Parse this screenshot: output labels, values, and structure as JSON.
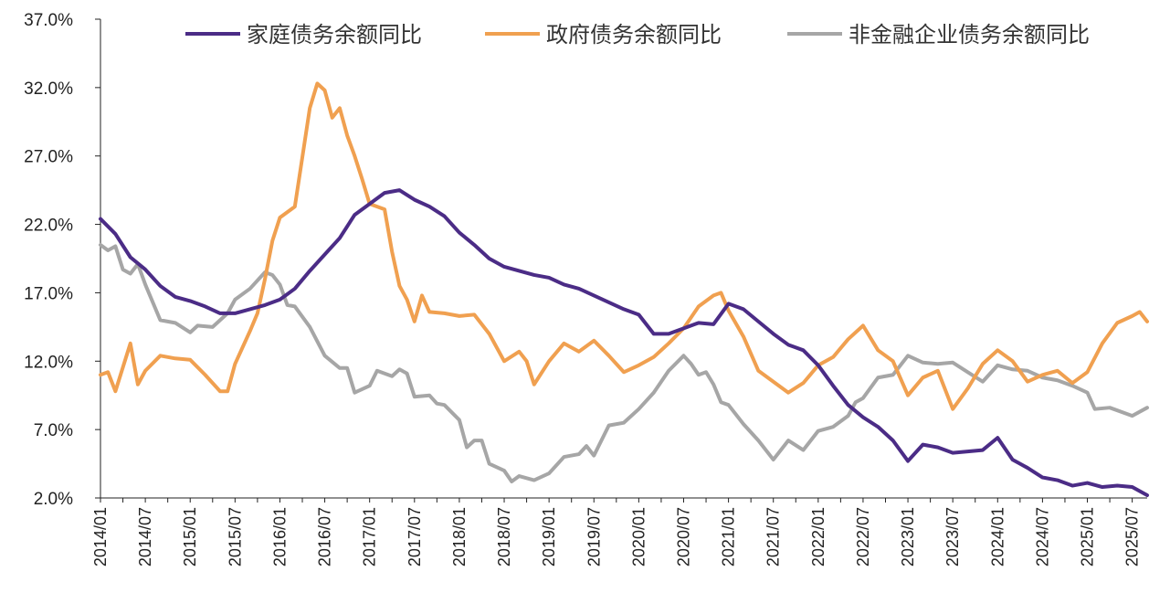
{
  "chart_data": {
    "type": "line",
    "title": "",
    "xlabel": "",
    "ylabel": "",
    "ylim": [
      2.0,
      37.0
    ],
    "y_ticks": [
      "2.0%",
      "7.0%",
      "12.0%",
      "17.0%",
      "22.0%",
      "27.0%",
      "32.0%",
      "37.0%"
    ],
    "x_tick_labels": [
      "2014/01",
      "2014/07",
      "2015/01",
      "2015/07",
      "2016/01",
      "2016/07",
      "2017/01",
      "2017/07",
      "2018/01",
      "2018/07",
      "2019/01",
      "2019/07",
      "2020/01",
      "2020/07",
      "2021/01",
      "2021/07",
      "2022/01",
      "2022/07",
      "2023/01",
      "2023/07",
      "2024/01",
      "2024/07",
      "2025/01",
      "2025/07"
    ],
    "legend_position": "top",
    "grid": false,
    "series": [
      {
        "name": "家庭债务余额同比",
        "color": "#4B2C86",
        "keypoints": [
          [
            "2014/01",
            22.4
          ],
          [
            "2014/03",
            21.3
          ],
          [
            "2014/05",
            19.6
          ],
          [
            "2014/07",
            18.7
          ],
          [
            "2014/09",
            17.5
          ],
          [
            "2014/11",
            16.7
          ],
          [
            "2015/01",
            16.4
          ],
          [
            "2015/03",
            16.0
          ],
          [
            "2015/05",
            15.5
          ],
          [
            "2015/07",
            15.5
          ],
          [
            "2015/09",
            15.8
          ],
          [
            "2015/11",
            16.1
          ],
          [
            "2016/01",
            16.5
          ],
          [
            "2016/03",
            17.3
          ],
          [
            "2016/05",
            18.6
          ],
          [
            "2016/07",
            19.8
          ],
          [
            "2016/09",
            21.0
          ],
          [
            "2016/11",
            22.7
          ],
          [
            "2017/01",
            23.5
          ],
          [
            "2017/03",
            24.3
          ],
          [
            "2017/05",
            24.5
          ],
          [
            "2017/07",
            23.8
          ],
          [
            "2017/09",
            23.3
          ],
          [
            "2017/11",
            22.6
          ],
          [
            "2018/01",
            21.4
          ],
          [
            "2018/03",
            20.5
          ],
          [
            "2018/05",
            19.5
          ],
          [
            "2018/07",
            18.9
          ],
          [
            "2018/09",
            18.6
          ],
          [
            "2018/11",
            18.3
          ],
          [
            "2019/01",
            18.1
          ],
          [
            "2019/03",
            17.6
          ],
          [
            "2019/05",
            17.3
          ],
          [
            "2019/07",
            16.8
          ],
          [
            "2019/09",
            16.3
          ],
          [
            "2019/11",
            15.8
          ],
          [
            "2020/01",
            15.4
          ],
          [
            "2020/03",
            14.0
          ],
          [
            "2020/05",
            14.0
          ],
          [
            "2020/07",
            14.4
          ],
          [
            "2020/09",
            14.8
          ],
          [
            "2020/11",
            14.7
          ],
          [
            "2021/01",
            16.2
          ],
          [
            "2021/03",
            15.8
          ],
          [
            "2021/05",
            14.9
          ],
          [
            "2021/07",
            14.0
          ],
          [
            "2021/09",
            13.2
          ],
          [
            "2021/11",
            12.8
          ],
          [
            "2022/01",
            11.7
          ],
          [
            "2022/03",
            10.2
          ],
          [
            "2022/05",
            8.8
          ],
          [
            "2022/07",
            7.9
          ],
          [
            "2022/09",
            7.2
          ],
          [
            "2022/11",
            6.2
          ],
          [
            "2023/01",
            4.7
          ],
          [
            "2023/03",
            5.9
          ],
          [
            "2023/05",
            5.7
          ],
          [
            "2023/07",
            5.3
          ],
          [
            "2023/09",
            5.4
          ],
          [
            "2023/11",
            5.5
          ],
          [
            "2024/01",
            6.4
          ],
          [
            "2024/03",
            4.8
          ],
          [
            "2024/05",
            4.2
          ],
          [
            "2024/07",
            3.5
          ],
          [
            "2024/09",
            3.3
          ],
          [
            "2024/11",
            2.9
          ],
          [
            "2025/01",
            3.1
          ],
          [
            "2025/03",
            2.8
          ],
          [
            "2025/05",
            2.9
          ],
          [
            "2025/07",
            2.8
          ],
          [
            "2025/09",
            2.2
          ]
        ]
      },
      {
        "name": "政府债务余额同比",
        "color": "#F0A050",
        "keypoints": [
          [
            "2014/01",
            11.0
          ],
          [
            "2014/02",
            11.2
          ],
          [
            "2014/03",
            9.8
          ],
          [
            "2014/05",
            13.3
          ],
          [
            "2014/06",
            10.3
          ],
          [
            "2014/07",
            11.3
          ],
          [
            "2014/09",
            12.4
          ],
          [
            "2014/11",
            12.2
          ],
          [
            "2015/01",
            12.1
          ],
          [
            "2015/03",
            11.0
          ],
          [
            "2015/05",
            9.8
          ],
          [
            "2015/06",
            9.8
          ],
          [
            "2015/07",
            11.8
          ],
          [
            "2015/09",
            14.2
          ],
          [
            "2015/10",
            15.5
          ],
          [
            "2015/11",
            18.0
          ],
          [
            "2015/12",
            20.8
          ],
          [
            "2016/01",
            22.5
          ],
          [
            "2016/03",
            23.3
          ],
          [
            "2016/05",
            30.5
          ],
          [
            "2016/06",
            32.3
          ],
          [
            "2016/07",
            31.8
          ],
          [
            "2016/08",
            29.8
          ],
          [
            "2016/09",
            30.5
          ],
          [
            "2016/10",
            28.5
          ],
          [
            "2016/11",
            27.0
          ],
          [
            "2016/12",
            25.3
          ],
          [
            "2017/01",
            23.5
          ],
          [
            "2017/03",
            23.1
          ],
          [
            "2017/04",
            20.0
          ],
          [
            "2017/05",
            17.5
          ],
          [
            "2017/06",
            16.5
          ],
          [
            "2017/07",
            14.9
          ],
          [
            "2017/08",
            16.8
          ],
          [
            "2017/09",
            15.6
          ],
          [
            "2017/11",
            15.5
          ],
          [
            "2018/01",
            15.3
          ],
          [
            "2018/03",
            15.4
          ],
          [
            "2018/05",
            14.0
          ],
          [
            "2018/07",
            12.0
          ],
          [
            "2018/09",
            12.7
          ],
          [
            "2018/10",
            12.0
          ],
          [
            "2018/11",
            10.3
          ],
          [
            "2019/01",
            12.0
          ],
          [
            "2019/03",
            13.3
          ],
          [
            "2019/05",
            12.7
          ],
          [
            "2019/07",
            13.5
          ],
          [
            "2019/09",
            12.4
          ],
          [
            "2019/11",
            11.2
          ],
          [
            "2020/01",
            11.7
          ],
          [
            "2020/03",
            12.3
          ],
          [
            "2020/05",
            13.3
          ],
          [
            "2020/07",
            14.4
          ],
          [
            "2020/09",
            16.0
          ],
          [
            "2020/11",
            16.8
          ],
          [
            "2020/12",
            17.0
          ],
          [
            "2021/01",
            15.7
          ],
          [
            "2021/03",
            13.8
          ],
          [
            "2021/05",
            11.3
          ],
          [
            "2021/07",
            10.5
          ],
          [
            "2021/09",
            9.7
          ],
          [
            "2021/11",
            10.4
          ],
          [
            "2022/01",
            11.7
          ],
          [
            "2022/03",
            12.3
          ],
          [
            "2022/05",
            13.6
          ],
          [
            "2022/07",
            14.6
          ],
          [
            "2022/09",
            12.8
          ],
          [
            "2022/11",
            12.0
          ],
          [
            "2023/01",
            9.5
          ],
          [
            "2023/03",
            10.8
          ],
          [
            "2023/05",
            11.3
          ],
          [
            "2023/07",
            8.5
          ],
          [
            "2023/09",
            10.0
          ],
          [
            "2023/11",
            11.8
          ],
          [
            "2024/01",
            12.8
          ],
          [
            "2024/03",
            12.0
          ],
          [
            "2024/05",
            10.5
          ],
          [
            "2024/07",
            11.0
          ],
          [
            "2024/09",
            11.3
          ],
          [
            "2024/11",
            10.4
          ],
          [
            "2025/01",
            11.2
          ],
          [
            "2025/03",
            13.3
          ],
          [
            "2025/05",
            14.8
          ],
          [
            "2025/07",
            15.3
          ],
          [
            "2025/08",
            15.6
          ],
          [
            "2025/09",
            14.9
          ]
        ]
      },
      {
        "name": "非金融企业债务余额同比",
        "color": "#A6A6A6",
        "keypoints": [
          [
            "2014/01",
            20.5
          ],
          [
            "2014/02",
            20.1
          ],
          [
            "2014/03",
            20.4
          ],
          [
            "2014/04",
            18.7
          ],
          [
            "2014/05",
            18.4
          ],
          [
            "2014/06",
            19.1
          ],
          [
            "2014/07",
            17.6
          ],
          [
            "2014/09",
            15.0
          ],
          [
            "2014/11",
            14.8
          ],
          [
            "2015/01",
            14.1
          ],
          [
            "2015/02",
            14.6
          ],
          [
            "2015/04",
            14.5
          ],
          [
            "2015/06",
            15.5
          ],
          [
            "2015/07",
            16.5
          ],
          [
            "2015/09",
            17.3
          ],
          [
            "2015/11",
            18.5
          ],
          [
            "2015/12",
            18.3
          ],
          [
            "2016/01",
            17.6
          ],
          [
            "2016/02",
            16.1
          ],
          [
            "2016/03",
            16.0
          ],
          [
            "2016/05",
            14.5
          ],
          [
            "2016/07",
            12.4
          ],
          [
            "2016/09",
            11.5
          ],
          [
            "2016/10",
            11.5
          ],
          [
            "2016/11",
            9.7
          ],
          [
            "2017/01",
            10.2
          ],
          [
            "2017/02",
            11.3
          ],
          [
            "2017/04",
            10.9
          ],
          [
            "2017/05",
            11.4
          ],
          [
            "2017/06",
            11.1
          ],
          [
            "2017/07",
            9.4
          ],
          [
            "2017/09",
            9.5
          ],
          [
            "2017/10",
            8.9
          ],
          [
            "2017/11",
            8.8
          ],
          [
            "2018/01",
            7.7
          ],
          [
            "2018/02",
            5.7
          ],
          [
            "2018/03",
            6.2
          ],
          [
            "2018/04",
            6.2
          ],
          [
            "2018/05",
            4.5
          ],
          [
            "2018/07",
            4.0
          ],
          [
            "2018/08",
            3.2
          ],
          [
            "2018/09",
            3.6
          ],
          [
            "2018/11",
            3.3
          ],
          [
            "2019/01",
            3.8
          ],
          [
            "2019/03",
            5.0
          ],
          [
            "2019/05",
            5.2
          ],
          [
            "2019/06",
            5.8
          ],
          [
            "2019/07",
            5.1
          ],
          [
            "2019/09",
            7.3
          ],
          [
            "2019/11",
            7.5
          ],
          [
            "2020/01",
            8.5
          ],
          [
            "2020/03",
            9.7
          ],
          [
            "2020/05",
            11.3
          ],
          [
            "2020/07",
            12.4
          ],
          [
            "2020/08",
            11.8
          ],
          [
            "2020/09",
            11.0
          ],
          [
            "2020/10",
            11.2
          ],
          [
            "2020/11",
            10.3
          ],
          [
            "2020/12",
            9.0
          ],
          [
            "2021/01",
            8.8
          ],
          [
            "2021/03",
            7.4
          ],
          [
            "2021/05",
            6.2
          ],
          [
            "2021/07",
            4.8
          ],
          [
            "2021/09",
            6.2
          ],
          [
            "2021/11",
            5.5
          ],
          [
            "2022/01",
            6.9
          ],
          [
            "2022/03",
            7.2
          ],
          [
            "2022/05",
            8.0
          ],
          [
            "2022/06",
            9.0
          ],
          [
            "2022/07",
            9.3
          ],
          [
            "2022/09",
            10.8
          ],
          [
            "2022/11",
            11.0
          ],
          [
            "2023/01",
            12.4
          ],
          [
            "2023/03",
            11.9
          ],
          [
            "2023/05",
            11.8
          ],
          [
            "2023/07",
            11.9
          ],
          [
            "2023/09",
            11.2
          ],
          [
            "2023/11",
            10.5
          ],
          [
            "2024/01",
            11.7
          ],
          [
            "2024/03",
            11.4
          ],
          [
            "2024/05",
            11.3
          ],
          [
            "2024/07",
            10.8
          ],
          [
            "2024/09",
            10.6
          ],
          [
            "2024/11",
            10.2
          ],
          [
            "2025/01",
            9.7
          ],
          [
            "2025/02",
            8.5
          ],
          [
            "2025/04",
            8.6
          ],
          [
            "2025/06",
            8.2
          ],
          [
            "2025/07",
            8.0
          ],
          [
            "2025/09",
            8.6
          ]
        ]
      }
    ]
  }
}
